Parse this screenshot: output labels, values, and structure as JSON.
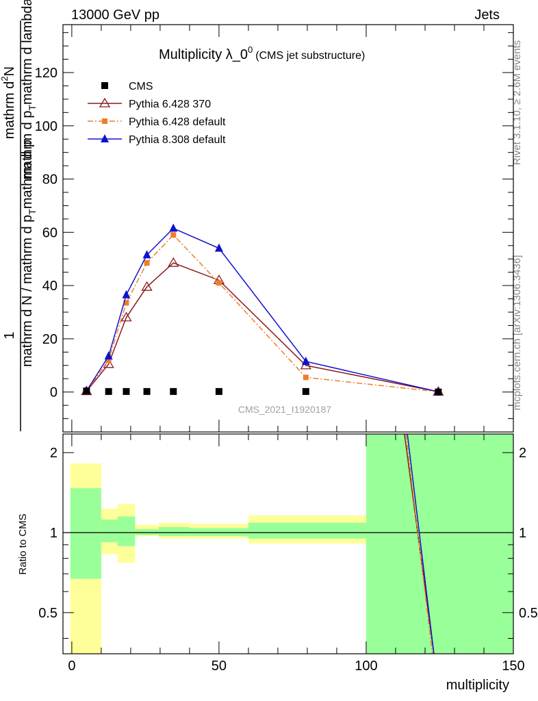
{
  "header": {
    "left": "13000 GeV pp",
    "right": "Jets"
  },
  "side": {
    "rivet": "Rivet 3.1.10, ≥ 2.6M events",
    "mcplots": "mcplots.cern.ch [arXiv:1306.3436]"
  },
  "analysis_id": "CMS_2021_I1920187",
  "chart_data": [
    {
      "type": "line",
      "title_main": "Multiplicity λ_0",
      "title_sup": "0",
      "title_sub": "(CMS jet substructure)",
      "ylabel_top": "1",
      "ylabel_top_den": "mathrm d N / mathrm d p",
      "ylabel_top_den2": "mathrm d p",
      "ylabel_num": "mathrm d",
      "ylabel_num_sup": "2",
      "ylabel_num2": "N",
      "ylabel_den": "mathrm d p",
      "ylabel_den2": "mathrm d lambda",
      "ylabel_den_mid": "mathrm d",
      "ylabel_sub": "T",
      "xlim": [
        -3,
        150
      ],
      "ylim": [
        -15,
        138
      ],
      "yticks": [
        0,
        20,
        40,
        60,
        80,
        100,
        120
      ],
      "xticks": [
        0,
        50,
        100,
        150
      ],
      "legend_position": "top-left",
      "series": [
        {
          "name": "CMS",
          "color": "#000000",
          "marker": "square",
          "x": [
            5,
            12.5,
            18.5,
            25.5,
            34.5,
            50,
            79.5,
            124.5
          ],
          "y": [
            0.4,
            0.2,
            0.2,
            0.2,
            0.2,
            0.2,
            0.2,
            0.0
          ]
        },
        {
          "name": "Pythia 6.428 370",
          "color": "#8b1a1a",
          "marker": "open-triangle",
          "x": [
            5,
            12.5,
            18.5,
            25.5,
            34.5,
            50,
            79.5,
            124.5
          ],
          "y": [
            0.3,
            10.5,
            28,
            39.5,
            48.5,
            42,
            10,
            0.1
          ]
        },
        {
          "name": "Pythia 6.428 default",
          "color": "#f07d2a",
          "marker": "square-small",
          "x": [
            5,
            12.5,
            18.5,
            25.5,
            34.5,
            50,
            79.5,
            124.5
          ],
          "y": [
            0.3,
            12,
            33.5,
            48.5,
            59,
            41,
            5.5,
            0.1
          ]
        },
        {
          "name": "Pythia 8.308 default",
          "color": "#1010d0",
          "marker": "triangle",
          "x": [
            5,
            12.5,
            18.5,
            25.5,
            34.5,
            50,
            79.5,
            124.5
          ],
          "y": [
            0.4,
            13.5,
            36.5,
            51.5,
            61.5,
            54,
            11.5,
            0.1
          ]
        }
      ]
    },
    {
      "type": "area",
      "ylabel": "Ratio to CMS",
      "xlabel": "multiplicity",
      "xlim": [
        -3,
        150
      ],
      "ylim": [
        0.35,
        2.35
      ],
      "yticks": [
        0.5,
        1,
        2
      ],
      "xticks": [
        0,
        50,
        100,
        150
      ],
      "bands": [
        {
          "x0": -0.5,
          "x1": 10,
          "yellow": [
            0.35,
            1.82
          ],
          "green": [
            0.67,
            1.47
          ]
        },
        {
          "x0": 10,
          "x1": 15.5,
          "yellow": [
            0.83,
            1.23
          ],
          "green": [
            0.92,
            1.12
          ]
        },
        {
          "x0": 15.5,
          "x1": 21.5,
          "yellow": [
            0.77,
            1.28
          ],
          "green": [
            0.89,
            1.15
          ]
        },
        {
          "x0": 21.5,
          "x1": 29.5,
          "yellow": [
            0.97,
            1.07
          ],
          "green": [
            0.98,
            1.03
          ]
        },
        {
          "x0": 29.5,
          "x1": 40,
          "yellow": [
            0.95,
            1.09
          ],
          "green": [
            0.97,
            1.05
          ]
        },
        {
          "x0": 40,
          "x1": 60,
          "yellow": [
            0.95,
            1.08
          ],
          "green": [
            0.97,
            1.04
          ]
        },
        {
          "x0": 60,
          "x1": 100,
          "yellow": [
            0.91,
            1.16
          ],
          "green": [
            0.95,
            1.09
          ]
        },
        {
          "x0": 100,
          "x1": 150,
          "yellow": [
            0.35,
            2.35
          ],
          "green": [
            0.35,
            2.35
          ]
        }
      ],
      "series": [
        {
          "name": "Pythia 6.428 370",
          "color": "#8b1a1a",
          "x": [
            113,
            123
          ],
          "y": [
            2.35,
            0.35
          ]
        },
        {
          "name": "Pythia 6.428 default",
          "color": "#f07d2a",
          "x": [
            113.5,
            122.5
          ],
          "y": [
            2.35,
            0.35
          ]
        },
        {
          "name": "Pythia 8.308 default",
          "color": "#1010d0",
          "x": [
            114,
            123
          ],
          "y": [
            2.35,
            0.35
          ]
        }
      ]
    }
  ]
}
